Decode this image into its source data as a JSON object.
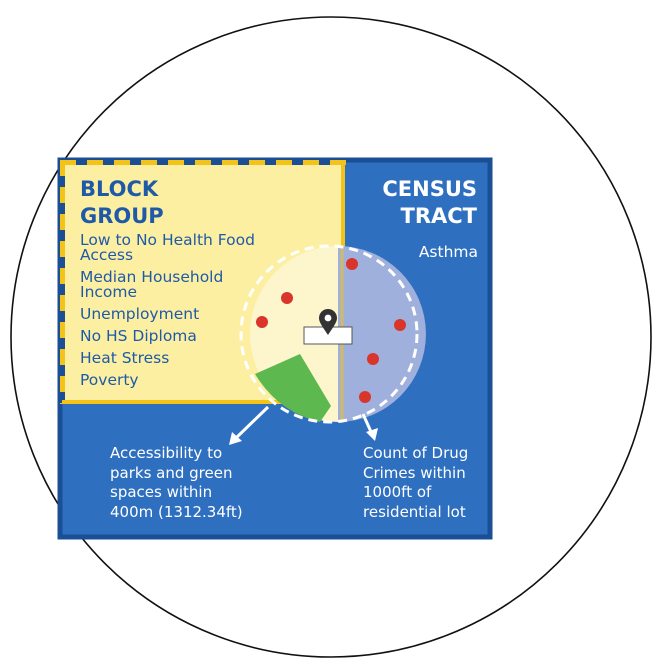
{
  "block_group": {
    "title": "BLOCK\nGROUP",
    "items": [
      "Low to No Health Food\nAccess",
      "Median Household\nIncome",
      "Unemployment",
      "No HS Diploma",
      "Heat Stress",
      "Poverty"
    ]
  },
  "census_tract": {
    "title": "CENSUS\nTRACT",
    "subtitle": "Asthma"
  },
  "annotations": {
    "parks": "Accessibility to\nparks and green\nspaces within\n400m (1312.34ft)",
    "crimes": "Count of Drug\nCrimes within\n1000ft of\nresidential lot"
  },
  "colors": {
    "census_blue": "#2e6fc0",
    "census_border": "#1a4f96",
    "block_yellow": "#fcefa2",
    "dash_yellow": "#f3c319",
    "dash_navy": "#1a4f96",
    "buffer_purple": "#9fb0dd",
    "buffer_cream": "#fdf6cd",
    "park_green": "#5cb84f",
    "crime_red": "#d9352b"
  },
  "icons": {
    "location": "map-pin-icon"
  }
}
